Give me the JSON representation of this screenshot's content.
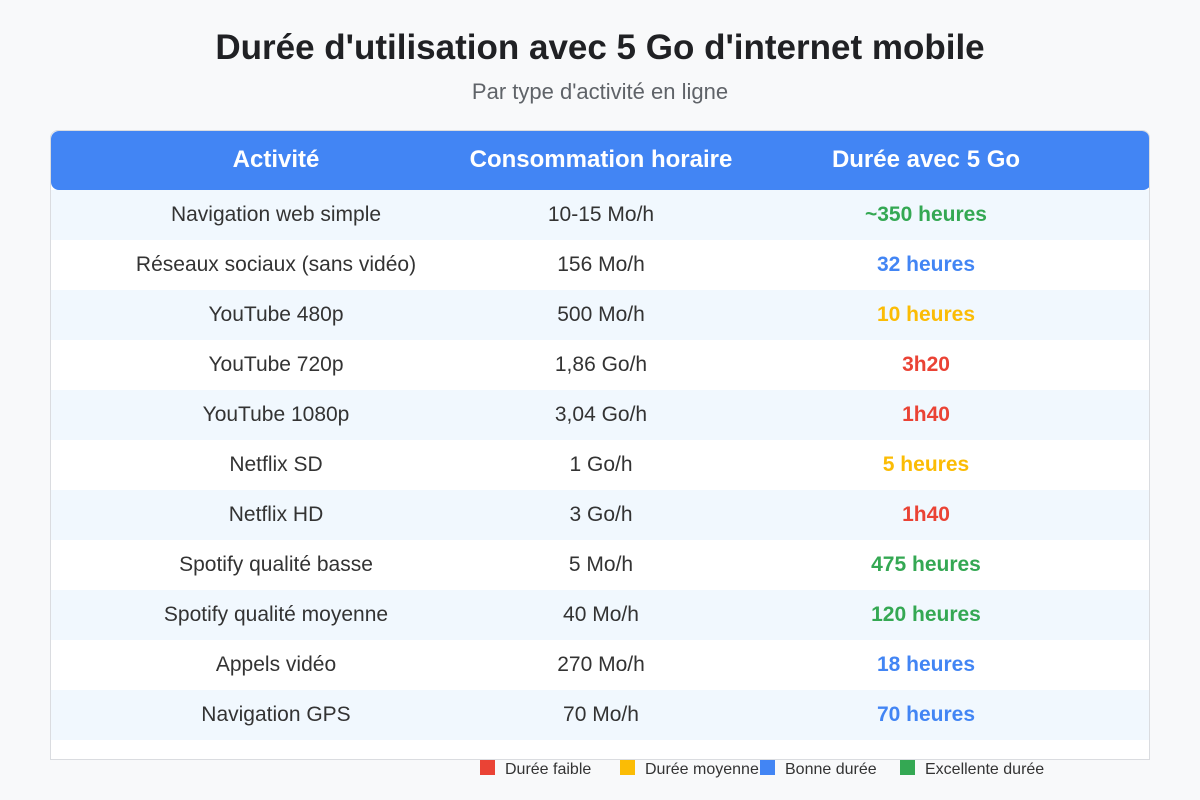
{
  "title": "Durée d'utilisation avec 5 Go d'internet mobile",
  "subtitle": "Par type d'activité en ligne",
  "table": {
    "headers": {
      "activity": "Activité",
      "consumption": "Consommation horaire",
      "duration": "Durée avec 5 Go"
    },
    "rows": [
      {
        "activity": "Navigation web simple",
        "consumption": "10-15 Mo/h",
        "duration": "~350 heures",
        "level": "excellente"
      },
      {
        "activity": "Réseaux sociaux (sans vidéo)",
        "consumption": "156 Mo/h",
        "duration": "32 heures",
        "level": "bonne"
      },
      {
        "activity": "YouTube 480p",
        "consumption": "500 Mo/h",
        "duration": "10 heures",
        "level": "moyenne"
      },
      {
        "activity": "YouTube 720p",
        "consumption": "1,86 Go/h",
        "duration": "3h20",
        "level": "faible"
      },
      {
        "activity": "YouTube 1080p",
        "consumption": "3,04 Go/h",
        "duration": "1h40",
        "level": "faible"
      },
      {
        "activity": "Netflix SD",
        "consumption": "1 Go/h",
        "duration": "5 heures",
        "level": "moyenne"
      },
      {
        "activity": "Netflix HD",
        "consumption": "3 Go/h",
        "duration": "1h40",
        "level": "faible"
      },
      {
        "activity": "Spotify qualité basse",
        "consumption": "5 Mo/h",
        "duration": "475 heures",
        "level": "excellente"
      },
      {
        "activity": "Spotify qualité moyenne",
        "consumption": "40 Mo/h",
        "duration": "120 heures",
        "level": "excellente"
      },
      {
        "activity": "Appels vidéo",
        "consumption": "270 Mo/h",
        "duration": "18 heures",
        "level": "bonne"
      },
      {
        "activity": "Navigation GPS",
        "consumption": "70 Mo/h",
        "duration": "70 heures",
        "level": "bonne"
      }
    ]
  },
  "legend": {
    "items": [
      {
        "label": "Durée faible",
        "color": "#ea4335"
      },
      {
        "label": "Durée moyenne",
        "color": "#fbbc05"
      },
      {
        "label": "Bonne durée",
        "color": "#4285f4"
      },
      {
        "label": "Excellente durée",
        "color": "#34a853"
      }
    ]
  },
  "colors": {
    "header_bg": "#4285f4",
    "row_alt_bg": "#f1f8fe",
    "faible": "#ea4335",
    "moyenne": "#fbbc05",
    "bonne": "#4285f4",
    "excellente": "#34a853"
  }
}
